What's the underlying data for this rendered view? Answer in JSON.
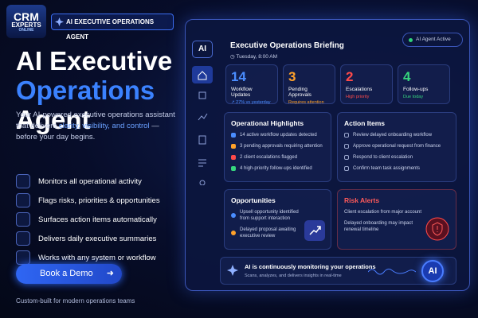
{
  "brand": {
    "logo_line1": "CRM",
    "logo_line2": "EXPERTS",
    "logo_line3": "ONLINE",
    "badge": "AI EXECUTIVE OPERATIONS AGENT"
  },
  "hero": {
    "title_line1": "AI Executive",
    "title_line2": "Operations",
    "title_line3": "Agent",
    "description_before": "Your AI-powered executive operations assistant that delivers ",
    "description_highlight": "clarity, visibility, and control",
    "description_after": " — before your day begins."
  },
  "features": [
    "Monitors all operational activity",
    "Flags risks, priorities & opportunities",
    "Surfaces action items automatically",
    "Delivers daily executive summaries",
    "Works with any system or workflow"
  ],
  "cta": {
    "button": "Book a Demo",
    "note": "Custom-built for modern operations teams"
  },
  "dashboard": {
    "sidebar_logo": "AI",
    "title": "Executive Operations Briefing",
    "datetime": "Tuesday, 8:00 AM",
    "status": "AI Agent Active",
    "stats": [
      {
        "value": 14,
        "label": "Workflow Updates",
        "detail": "↗ 27% vs yesterday"
      },
      {
        "value": 3,
        "label": "Pending Approvals",
        "detail": "Requires attention"
      },
      {
        "value": 2,
        "label": "Escalations",
        "detail": "High priority"
      },
      {
        "value": 4,
        "label": "Follow-ups",
        "detail": "Due today"
      }
    ],
    "highlights": {
      "title": "Operational Highlights",
      "items": [
        "14 active workflow updates detected",
        "3 pending approvals requiring attention",
        "2 client escalations flagged",
        "4 high-priority follow-ups identified"
      ]
    },
    "action_items": {
      "title": "Action Items",
      "items": [
        "Review delayed onboarding workflow",
        "Approve operational request from finance",
        "Respond to client escalation",
        "Confirm team task assignments"
      ]
    },
    "opportunities": {
      "title": "Opportunities",
      "items": [
        "Upsell opportunity identified from support interaction",
        "Delayed proposal awaiting executive review"
      ]
    },
    "risk_alerts": {
      "title": "Risk Alerts",
      "items": [
        "Client escalation from major account",
        "Delayed onboarding may impact renewal timeline"
      ]
    },
    "footer": {
      "title": "AI is continuously monitoring your operations",
      "subtitle": "Scans, analyzes, and delivers insights in real-time",
      "badge": "AI"
    }
  }
}
